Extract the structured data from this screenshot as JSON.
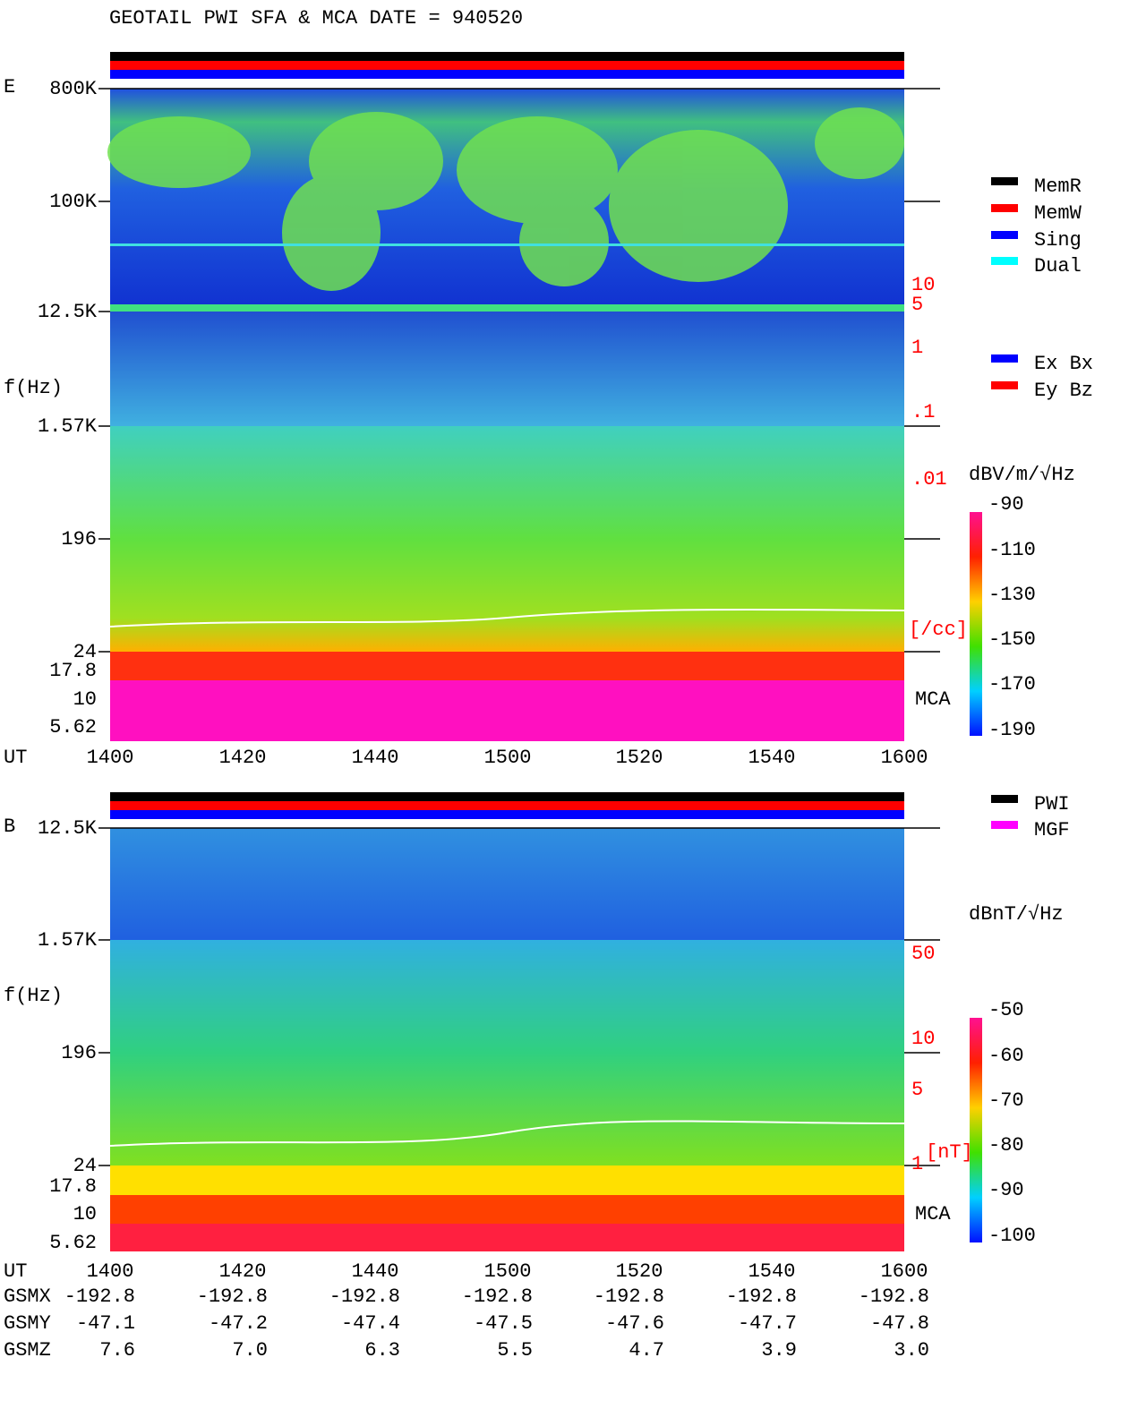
{
  "header": {
    "title": "GEOTAIL  PWI SFA & MCA   DATE = 940520"
  },
  "panel_e": {
    "label": "E",
    "axis_label": "f(Hz)",
    "freq_labels": [
      "800K",
      "100K",
      "12.5K",
      "1.57K",
      "196",
      "24",
      "17.8",
      "10",
      "5.62"
    ],
    "density_labels": [
      "10",
      "5",
      "1",
      ".1",
      ".01"
    ],
    "density_unit": "[/cc]",
    "mca": "MCA",
    "ut_label": "UT",
    "time_labels": [
      "1400",
      "1420",
      "1440",
      "1500",
      "1520",
      "1540",
      "1600"
    ],
    "legend": [
      "MemR",
      "MemW",
      "Sing",
      "Dual"
    ],
    "legend2": [
      "Ex Bx",
      "Ey Bz"
    ],
    "colorbar_unit": "dBV/m/√Hz",
    "colorbar_labels": [
      "-90",
      "-110",
      "-130",
      "-150",
      "-170",
      "-190"
    ]
  },
  "panel_b": {
    "label": "B",
    "axis_label": "f(Hz)",
    "freq_labels": [
      "12.5K",
      "1.57K",
      "196",
      "24",
      "17.8",
      "10",
      "5.62"
    ],
    "field_labels": [
      "50",
      "10",
      "5",
      "1"
    ],
    "field_unit": "[nT]",
    "mca": "MCA",
    "ut_label": "UT",
    "time_labels": [
      "1400",
      "1420",
      "1440",
      "1500",
      "1520",
      "1540",
      "1600"
    ],
    "legend": [
      "PWI",
      "MGF"
    ],
    "colorbar_unit": "dBnT/√Hz",
    "colorbar_labels": [
      "-50",
      "-60",
      "-70",
      "-80",
      "-90",
      "-100"
    ]
  },
  "orbit": {
    "rows": [
      {
        "name": "GSMX",
        "values": [
          "-192.8",
          "-192.8",
          "-192.8",
          "-192.8",
          "-192.8",
          "-192.8",
          "-192.8"
        ]
      },
      {
        "name": "GSMY",
        "values": [
          "-47.1",
          "-47.2",
          "-47.4",
          "-47.5",
          "-47.6",
          "-47.7",
          "-47.8"
        ]
      },
      {
        "name": "GSMZ",
        "values": [
          "7.6",
          "7.0",
          "6.3",
          "5.5",
          "4.7",
          "3.9",
          "3.0"
        ]
      }
    ]
  }
}
